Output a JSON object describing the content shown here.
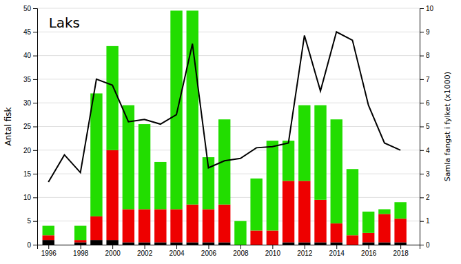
{
  "chart_data": {
    "type": "bar",
    "stacked": true,
    "grid": true,
    "title": "Laks",
    "ylabel": "Antal fisk",
    "y2label": "Samla fangst i fylket (x1000)",
    "x": [
      1996,
      1997,
      1998,
      1999,
      2000,
      2001,
      2002,
      2003,
      2004,
      2005,
      2006,
      2007,
      2008,
      2009,
      2010,
      2011,
      2012,
      2013,
      2014,
      2015,
      2016,
      2017,
      2018
    ],
    "xlim": [
      1995.3,
      2019.2
    ],
    "xticks": [
      1996,
      1998,
      2000,
      2002,
      2004,
      2006,
      2008,
      2010,
      2012,
      2014,
      2016,
      2018
    ],
    "ylim": [
      0,
      50
    ],
    "yticks": [
      0,
      5,
      10,
      15,
      20,
      25,
      30,
      35,
      40,
      45,
      50
    ],
    "y2lim": [
      0,
      10
    ],
    "y2ticks": [
      0,
      1,
      2,
      3,
      4,
      5,
      6,
      7,
      8,
      9,
      10
    ],
    "series": [
      {
        "type": "bar",
        "color": "#000000",
        "values": [
          1.0,
          0.0,
          0.5,
          1.0,
          1.0,
          0.5,
          0.5,
          0.5,
          0.5,
          0.5,
          0.5,
          0.5,
          0.0,
          0.0,
          0.0,
          0.5,
          0.5,
          0.5,
          0.5,
          0.0,
          0.5,
          0.5,
          0.5
        ]
      },
      {
        "type": "bar",
        "color": "#ee0000",
        "values": [
          1.0,
          0.0,
          0.5,
          5.0,
          19.0,
          7.0,
          7.0,
          7.0,
          7.0,
          8.0,
          7.0,
          8.0,
          0.0,
          3.0,
          3.0,
          13.0,
          13.0,
          9.0,
          4.0,
          2.0,
          2.0,
          6.0,
          5.0
        ]
      },
      {
        "type": "bar",
        "color": "#22dd00",
        "values": [
          2.0,
          0.0,
          3.0,
          26.0,
          22.0,
          22.0,
          18.0,
          10.0,
          42.0,
          41.0,
          11.0,
          18.0,
          5.0,
          11.0,
          19.0,
          8.5,
          16.0,
          20.0,
          22.0,
          14.0,
          4.5,
          1.0,
          3.5
        ]
      },
      {
        "type": "line",
        "axis": "y2",
        "color": "#000000",
        "values": [
          2.65,
          3.8,
          3.05,
          7.0,
          6.75,
          5.2,
          5.3,
          5.1,
          5.5,
          8.5,
          3.25,
          3.55,
          3.65,
          4.1,
          4.15,
          4.3,
          8.85,
          6.5,
          9.0,
          8.65,
          5.9,
          4.3,
          4.0
        ]
      }
    ]
  }
}
